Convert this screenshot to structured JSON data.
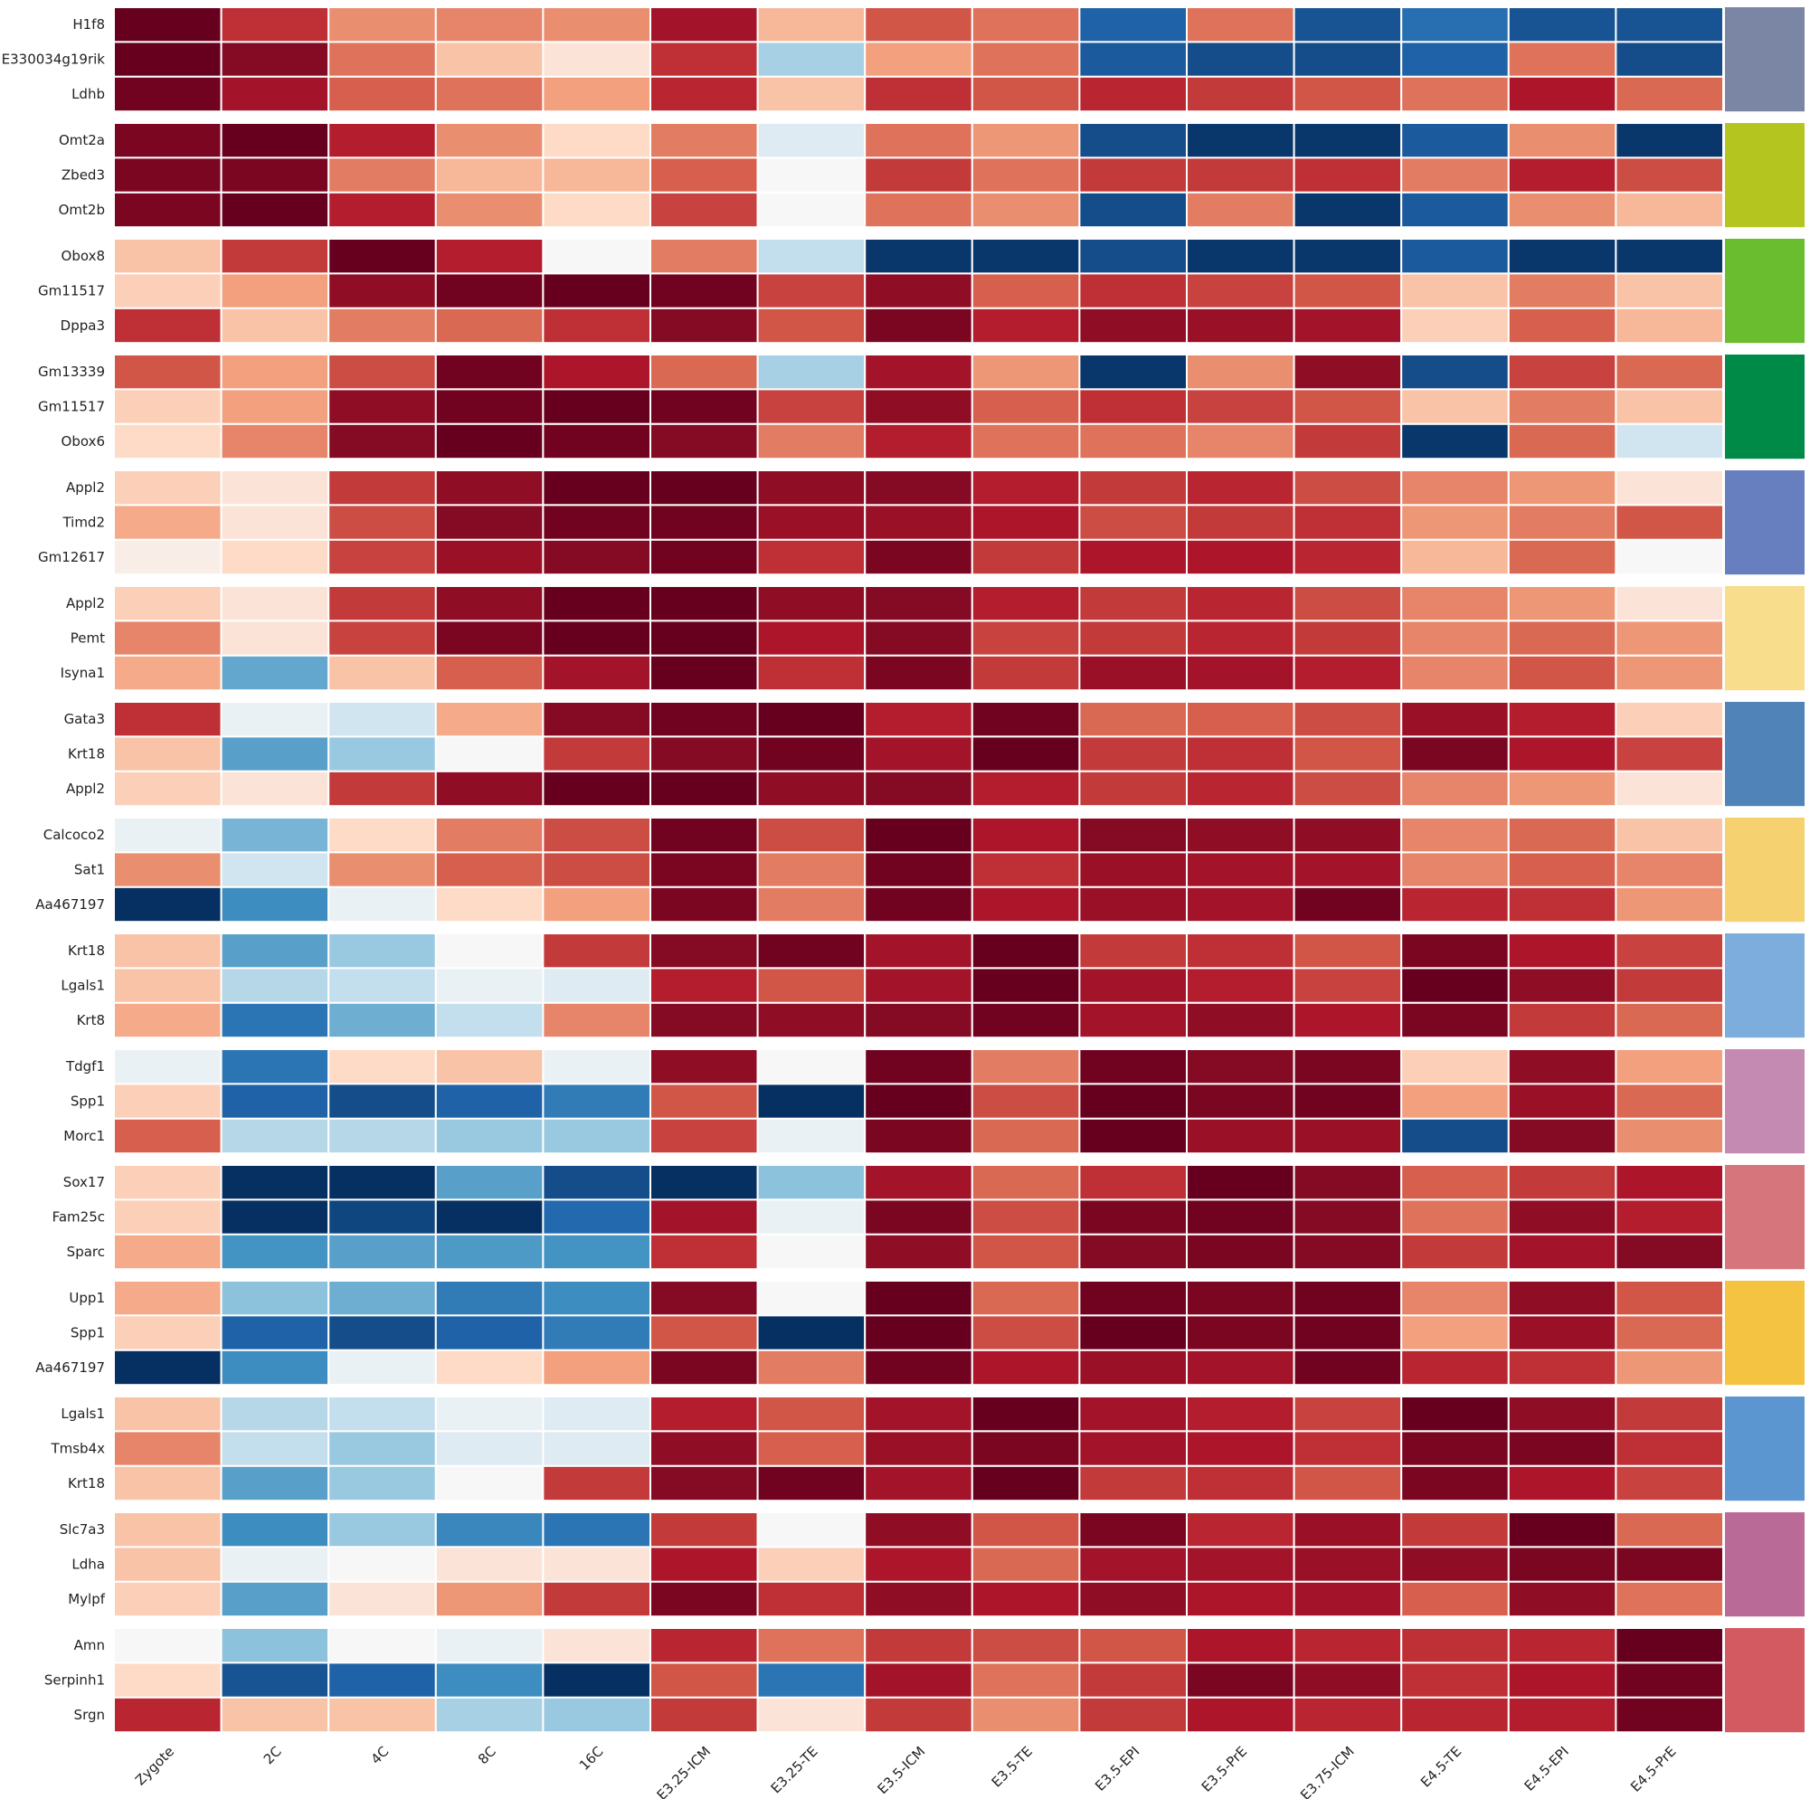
{
  "chart_data": {
    "type": "heatmap",
    "title": "",
    "xlabel": "",
    "ylabel": "",
    "colormap": "diverging red-blue (RdBu_r), high = dark red, low = dark blue",
    "columns": [
      "Zygote",
      "2C",
      "4C",
      "8C",
      "16C",
      "E3.25-ICM",
      "E3.25-TE",
      "E3.5-ICM",
      "E3.5-TE",
      "E3.5-EPI",
      "E3.5-PrE",
      "E3.75-ICM",
      "E4.5-TE",
      "E4.5-EPI",
      "E4.5-PrE"
    ],
    "groups": [
      {
        "color": "#7b86a5",
        "genes": [
          {
            "name": "H1f8",
            "values": [
              3.0,
              2.0,
              1.0,
              1.1,
              1.0,
              2.4,
              0.6,
              1.6,
              1.3,
              -2.3,
              1.3,
              -2.5,
              -2.1,
              -2.5,
              -2.5
            ]
          },
          {
            "name": "E330034g19rik",
            "values": [
              3.0,
              2.7,
              1.3,
              0.5,
              0.2,
              2.0,
              -0.6,
              0.8,
              1.3,
              -2.4,
              -2.6,
              -2.6,
              -2.3,
              1.3,
              -2.6
            ]
          },
          {
            "name": "Ldhb",
            "values": [
              2.9,
              2.4,
              1.5,
              1.3,
              0.8,
              2.1,
              0.5,
              2.0,
              1.6,
              2.1,
              1.9,
              1.6,
              1.3,
              2.3,
              1.4
            ]
          }
        ]
      },
      {
        "color": "#b5c520",
        "genes": [
          {
            "name": "Omt2a",
            "values": [
              2.8,
              3.0,
              2.2,
              1.0,
              0.3,
              1.2,
              -0.2,
              1.3,
              0.9,
              -2.6,
              -2.9,
              -2.9,
              -2.4,
              1.0,
              -2.9
            ]
          },
          {
            "name": "Zbed3",
            "values": [
              2.8,
              2.8,
              1.2,
              0.6,
              0.6,
              1.5,
              0.0,
              1.9,
              1.3,
              1.9,
              1.9,
              2.0,
              1.2,
              2.2,
              1.7
            ]
          },
          {
            "name": "Omt2b",
            "values": [
              2.8,
              3.0,
              2.2,
              1.0,
              0.3,
              1.8,
              0.0,
              1.3,
              1.0,
              -2.6,
              1.2,
              -2.9,
              -2.4,
              1.0,
              0.6
            ]
          }
        ]
      },
      {
        "color": "#6abd2e",
        "genes": [
          {
            "name": "Obox8",
            "values": [
              0.5,
              1.9,
              3.0,
              2.2,
              0.0,
              1.2,
              -0.4,
              -2.9,
              -2.9,
              -2.6,
              -2.9,
              -2.9,
              -2.4,
              -2.9,
              -2.9
            ]
          },
          {
            "name": "Gm11517",
            "values": [
              0.4,
              0.8,
              2.6,
              2.9,
              3.0,
              2.9,
              1.8,
              2.6,
              1.5,
              2.0,
              1.8,
              1.6,
              0.5,
              1.2,
              0.5
            ]
          },
          {
            "name": "Dppa3",
            "values": [
              2.0,
              0.5,
              1.2,
              1.4,
              2.0,
              2.7,
              1.6,
              2.8,
              2.2,
              2.6,
              2.5,
              2.4,
              0.4,
              1.5,
              0.6
            ]
          }
        ]
      },
      {
        "color": "#008a48",
        "genes": [
          {
            "name": "Gm13339",
            "values": [
              1.6,
              0.8,
              1.7,
              2.9,
              2.3,
              1.4,
              -0.6,
              2.4,
              0.9,
              -2.9,
              1.0,
              2.6,
              -2.6,
              1.8,
              1.4
            ]
          },
          {
            "name": "Gm11517",
            "values": [
              0.4,
              0.8,
              2.6,
              2.9,
              3.0,
              2.9,
              1.8,
              2.6,
              1.5,
              2.0,
              1.8,
              1.6,
              0.5,
              1.2,
              0.5
            ]
          },
          {
            "name": "Obox6",
            "values": [
              0.3,
              1.1,
              2.7,
              3.0,
              2.9,
              2.7,
              1.2,
              2.2,
              1.3,
              1.3,
              1.1,
              1.9,
              -2.9,
              1.4,
              -0.3
            ]
          }
        ]
      },
      {
        "color": "#677ebf",
        "genes": [
          {
            "name": "Appl2",
            "values": [
              0.4,
              0.2,
              1.9,
              2.6,
              3.0,
              3.0,
              2.6,
              2.7,
              2.2,
              1.9,
              2.1,
              1.7,
              1.1,
              0.9,
              0.2
            ]
          },
          {
            "name": "Timd2",
            "values": [
              0.7,
              0.2,
              1.7,
              2.7,
              2.9,
              2.9,
              2.5,
              2.5,
              2.3,
              1.7,
              1.9,
              2.0,
              0.9,
              1.2,
              1.6
            ]
          },
          {
            "name": "Gm12617",
            "values": [
              0.1,
              0.3,
              1.8,
              2.5,
              2.7,
              2.9,
              2.0,
              2.8,
              1.9,
              2.3,
              2.3,
              2.1,
              0.6,
              1.4,
              0.0
            ]
          }
        ]
      },
      {
        "color": "#f7dd8c",
        "genes": [
          {
            "name": "Appl2",
            "values": [
              0.4,
              0.2,
              1.9,
              2.6,
              3.0,
              3.0,
              2.6,
              2.7,
              2.2,
              1.9,
              2.1,
              1.7,
              1.1,
              0.9,
              0.2
            ]
          },
          {
            "name": "Pemt",
            "values": [
              1.1,
              0.2,
              1.8,
              2.8,
              3.0,
              3.0,
              2.3,
              2.7,
              1.8,
              1.9,
              2.1,
              1.9,
              1.1,
              1.4,
              0.9
            ]
          },
          {
            "name": "Isyna1",
            "values": [
              0.7,
              -1.2,
              0.5,
              1.5,
              2.4,
              3.0,
              2.0,
              2.8,
              1.9,
              2.5,
              2.4,
              2.2,
              1.1,
              1.6,
              0.9
            ]
          }
        ]
      },
      {
        "color": "#5083b8",
        "genes": [
          {
            "name": "Gata3",
            "values": [
              2.0,
              -0.1,
              -0.3,
              0.7,
              2.7,
              2.9,
              3.0,
              2.2,
              2.9,
              1.4,
              1.5,
              1.7,
              2.5,
              2.2,
              0.4
            ]
          },
          {
            "name": "Krt18",
            "values": [
              0.5,
              -1.3,
              -0.7,
              0.0,
              1.9,
              2.7,
              2.9,
              2.4,
              3.0,
              1.9,
              2.0,
              1.6,
              2.8,
              2.3,
              1.8
            ]
          },
          {
            "name": "Appl2",
            "values": [
              0.4,
              0.2,
              1.9,
              2.6,
              3.0,
              3.0,
              2.6,
              2.7,
              2.2,
              1.9,
              2.1,
              1.7,
              1.1,
              0.9,
              0.2
            ]
          }
        ]
      },
      {
        "color": "#f5d170",
        "genes": [
          {
            "name": "Calcoco2",
            "values": [
              -0.1,
              -1.0,
              0.3,
              1.2,
              1.7,
              2.9,
              1.7,
              3.0,
              2.3,
              2.7,
              2.6,
              2.6,
              1.1,
              1.4,
              0.5
            ]
          },
          {
            "name": "Sat1",
            "values": [
              1.0,
              -0.3,
              1.0,
              1.5,
              1.7,
              2.8,
              1.2,
              2.9,
              2.0,
              2.5,
              2.4,
              2.4,
              1.1,
              1.5,
              1.1
            ]
          },
          {
            "name": "Aa467197",
            "values": [
              -3.0,
              -1.6,
              -0.1,
              0.3,
              0.8,
              2.8,
              1.2,
              2.9,
              2.3,
              2.5,
              2.4,
              2.9,
              2.1,
              2.0,
              0.9
            ]
          }
        ]
      },
      {
        "color": "#7daddd",
        "genes": [
          {
            "name": "Krt18",
            "values": [
              0.5,
              -1.3,
              -0.7,
              0.0,
              1.9,
              2.7,
              2.9,
              2.4,
              3.0,
              1.9,
              2.0,
              1.6,
              2.8,
              2.3,
              1.8
            ]
          },
          {
            "name": "Lgals1",
            "values": [
              0.5,
              -0.5,
              -0.4,
              -0.1,
              -0.2,
              2.2,
              1.6,
              2.4,
              3.0,
              2.4,
              2.2,
              1.8,
              3.0,
              2.6,
              1.9
            ]
          },
          {
            "name": "Krt8",
            "values": [
              0.7,
              -2.0,
              -1.1,
              -0.4,
              1.1,
              2.7,
              2.6,
              2.7,
              2.9,
              2.4,
              2.6,
              2.3,
              2.8,
              1.9,
              1.4
            ]
          }
        ]
      },
      {
        "color": "#c48ab2",
        "genes": [
          {
            "name": "Tdgf1",
            "values": [
              -0.1,
              -2.0,
              0.3,
              0.5,
              -0.1,
              2.6,
              0.0,
              2.9,
              1.2,
              2.9,
              2.7,
              2.8,
              0.4,
              2.6,
              0.8
            ]
          },
          {
            "name": "Spp1",
            "values": [
              0.4,
              -2.3,
              -2.6,
              -2.3,
              -1.9,
              1.6,
              -3.0,
              3.0,
              1.7,
              3.0,
              2.8,
              2.9,
              0.8,
              2.5,
              1.4
            ]
          },
          {
            "name": "Morc1",
            "values": [
              1.5,
              -0.5,
              -0.5,
              -0.7,
              -0.7,
              1.8,
              -0.1,
              2.8,
              1.4,
              3.0,
              2.5,
              2.5,
              -2.6,
              2.7,
              1.0
            ]
          }
        ]
      },
      {
        "color": "#d6767c",
        "genes": [
          {
            "name": "Sox17",
            "values": [
              0.4,
              -3.0,
              -3.0,
              -1.3,
              -2.6,
              -3.0,
              -0.8,
              2.4,
              1.4,
              2.0,
              3.0,
              2.7,
              1.5,
              1.9,
              2.3
            ]
          },
          {
            "name": "Fam25c",
            "values": [
              0.4,
              -3.0,
              -2.7,
              -3.0,
              -2.2,
              2.4,
              -0.1,
              2.8,
              1.7,
              2.8,
              2.9,
              2.7,
              1.3,
              2.6,
              2.2
            ]
          },
          {
            "name": "Sparc",
            "values": [
              0.7,
              -1.5,
              -1.3,
              -1.4,
              -1.5,
              2.0,
              0.0,
              2.6,
              1.6,
              2.7,
              2.8,
              2.7,
              1.9,
              2.4,
              2.7
            ]
          }
        ]
      },
      {
        "color": "#f5c342",
        "genes": [
          {
            "name": "Upp1",
            "values": [
              0.7,
              -0.8,
              -1.1,
              -1.9,
              -1.6,
              2.7,
              0.0,
              3.0,
              1.4,
              2.9,
              2.8,
              2.9,
              1.1,
              2.6,
              1.6
            ]
          },
          {
            "name": "Spp1",
            "values": [
              0.4,
              -2.3,
              -2.6,
              -2.3,
              -1.9,
              1.6,
              -3.0,
              3.0,
              1.7,
              3.0,
              2.8,
              2.9,
              0.8,
              2.5,
              1.4
            ]
          },
          {
            "name": "Aa467197",
            "values": [
              -3.0,
              -1.6,
              -0.1,
              0.3,
              0.8,
              2.8,
              1.2,
              2.9,
              2.3,
              2.5,
              2.4,
              2.9,
              2.1,
              2.0,
              0.9
            ]
          }
        ]
      },
      {
        "color": "#5b96d1",
        "genes": [
          {
            "name": "Lgals1",
            "values": [
              0.5,
              -0.5,
              -0.4,
              -0.1,
              -0.2,
              2.2,
              1.6,
              2.4,
              3.0,
              2.4,
              2.2,
              1.8,
              3.0,
              2.6,
              1.9
            ]
          },
          {
            "name": "Tmsb4x",
            "values": [
              1.1,
              -0.4,
              -0.7,
              -0.2,
              -0.2,
              2.6,
              1.5,
              2.5,
              2.8,
              2.4,
              2.3,
              2.0,
              2.8,
              2.8,
              2.0
            ]
          },
          {
            "name": "Krt18",
            "values": [
              0.5,
              -1.3,
              -0.7,
              0.0,
              1.9,
              2.7,
              2.9,
              2.4,
              3.0,
              1.9,
              2.0,
              1.6,
              2.8,
              2.3,
              1.8
            ]
          }
        ]
      },
      {
        "color": "#b96a96",
        "genes": [
          {
            "name": "Slc7a3",
            "values": [
              0.5,
              -1.6,
              -0.7,
              -1.7,
              -2.0,
              1.9,
              0.0,
              2.6,
              1.6,
              2.8,
              2.1,
              2.5,
              1.9,
              3.0,
              1.4
            ]
          },
          {
            "name": "Ldha",
            "values": [
              0.5,
              -0.1,
              0.0,
              0.2,
              0.2,
              2.3,
              0.4,
              2.3,
              1.4,
              2.4,
              2.4,
              2.5,
              2.6,
              2.8,
              2.8
            ]
          },
          {
            "name": "Mylpf",
            "values": [
              0.4,
              -1.3,
              0.2,
              0.9,
              1.9,
              2.8,
              2.0,
              2.6,
              2.3,
              2.6,
              2.3,
              2.4,
              1.5,
              2.6,
              1.3
            ]
          }
        ]
      },
      {
        "color": "#d35a60",
        "genes": [
          {
            "name": "Amn",
            "values": [
              0.0,
              -0.8,
              0.0,
              -0.1,
              0.2,
              2.1,
              1.3,
              1.9,
              1.7,
              1.6,
              2.3,
              2.1,
              2.0,
              2.1,
              3.0
            ]
          },
          {
            "name": "Serpinh1",
            "values": [
              0.3,
              -2.5,
              -2.3,
              -1.6,
              -3.0,
              1.6,
              -2.0,
              2.4,
              1.3,
              1.9,
              2.8,
              2.6,
              2.0,
              2.3,
              2.9
            ]
          },
          {
            "name": "Srgn",
            "values": [
              2.1,
              0.5,
              0.5,
              -0.6,
              -0.7,
              1.9,
              0.2,
              1.9,
              1.0,
              1.9,
              2.3,
              2.1,
              2.1,
              2.2,
              2.9
            ]
          }
        ]
      }
    ],
    "value_range": [
      -3,
      3
    ],
    "legend": "none",
    "grid": false
  }
}
